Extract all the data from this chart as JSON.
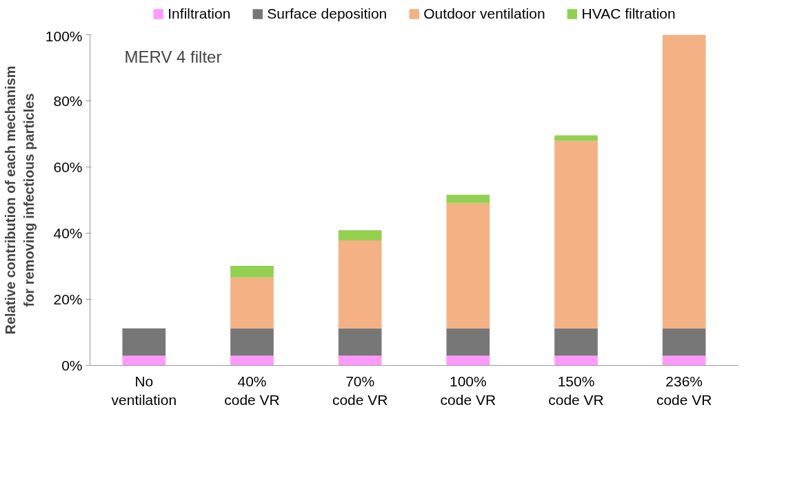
{
  "chart_data": {
    "type": "bar",
    "stacked": true,
    "categories": [
      "No\nventilation",
      "40%\ncode VR",
      "70%\ncode VR",
      "100%\ncode VR",
      "150%\ncode VR",
      "236%\ncode VR"
    ],
    "series": [
      {
        "name": "Infiltration",
        "color": "#ff99ff",
        "values": [
          2.9,
          2.9,
          2.9,
          2.9,
          2.9,
          2.9
        ]
      },
      {
        "name": "Surface deposition",
        "color": "#777777",
        "values": [
          8.3,
          8.3,
          8.3,
          8.3,
          8.3,
          8.3
        ]
      },
      {
        "name": "Outdoor ventilation",
        "color": "#f4b183",
        "values": [
          0,
          15.4,
          26.6,
          37.9,
          56.7,
          88.8
        ]
      },
      {
        "name": "HVAC filtration",
        "color": "#92d050",
        "values": [
          0,
          3.5,
          3.1,
          2.5,
          1.7,
          0
        ]
      }
    ],
    "ylabel": "Relative contribution of each mechanism\nfor removing infectious particles",
    "ylim": [
      0,
      100
    ],
    "yticks": [
      {
        "value": 0,
        "label": "0%"
      },
      {
        "value": 20,
        "label": "20%"
      },
      {
        "value": 40,
        "label": "40%"
      },
      {
        "value": 60,
        "label": "60%"
      },
      {
        "value": 80,
        "label": "80%"
      },
      {
        "value": 100,
        "label": "100%"
      }
    ],
    "annotations": [
      "MERV 4 filter"
    ],
    "grid": false,
    "legend": "top"
  }
}
